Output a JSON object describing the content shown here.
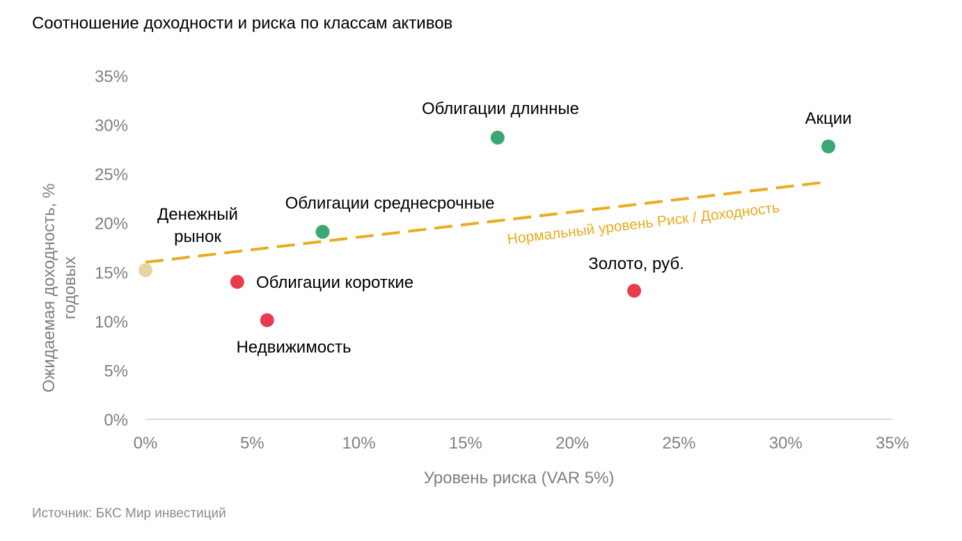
{
  "title": "Соотношение доходности и риска по классам активов",
  "source": "Источник: БКС Мир инвестиций",
  "chart_data": {
    "type": "scatter",
    "title": "Соотношение доходности и риска по классам активов",
    "xlabel": "Уровень риска (VAR 5%)",
    "ylabel_lines": [
      "Ожидаемая доходность, %",
      "годовых"
    ],
    "xlim": [
      0,
      35
    ],
    "ylim": [
      0,
      35
    ],
    "x_ticks": [
      "0%",
      "5%",
      "10%",
      "15%",
      "20%",
      "25%",
      "30%",
      "35%"
    ],
    "y_ticks": [
      "0%",
      "5%",
      "10%",
      "15%",
      "20%",
      "25%",
      "30%",
      "35%"
    ],
    "grid": false,
    "points": [
      {
        "label_lines": [
          "Денежный",
          "рынок"
        ],
        "x": 0.0,
        "y": 15.2,
        "color": "#e8d3a6"
      },
      {
        "label_lines": [
          "Облигации короткие"
        ],
        "x": 4.3,
        "y": 14.0,
        "color": "#ea3b4e"
      },
      {
        "label_lines": [
          "Недвижимость"
        ],
        "x": 5.7,
        "y": 10.1,
        "color": "#ea3b4e"
      },
      {
        "label_lines": [
          "Облигации среднесрочные"
        ],
        "x": 8.3,
        "y": 19.1,
        "color": "#3aa872"
      },
      {
        "label_lines": [
          "Облигации длинные"
        ],
        "x": 16.5,
        "y": 28.7,
        "color": "#3aa872"
      },
      {
        "label_lines": [
          "Золото, руб."
        ],
        "x": 22.9,
        "y": 13.1,
        "color": "#ea3b4e"
      },
      {
        "label_lines": [
          "Акции"
        ],
        "x": 32.0,
        "y": 27.8,
        "color": "#3aa872"
      }
    ],
    "trendline": {
      "label": "Нормальный уровень Риск / Доходность",
      "x": [
        0,
        32.0
      ],
      "y": [
        16.0,
        24.2
      ],
      "color": "#e8ac1e",
      "style": "dashed"
    }
  }
}
